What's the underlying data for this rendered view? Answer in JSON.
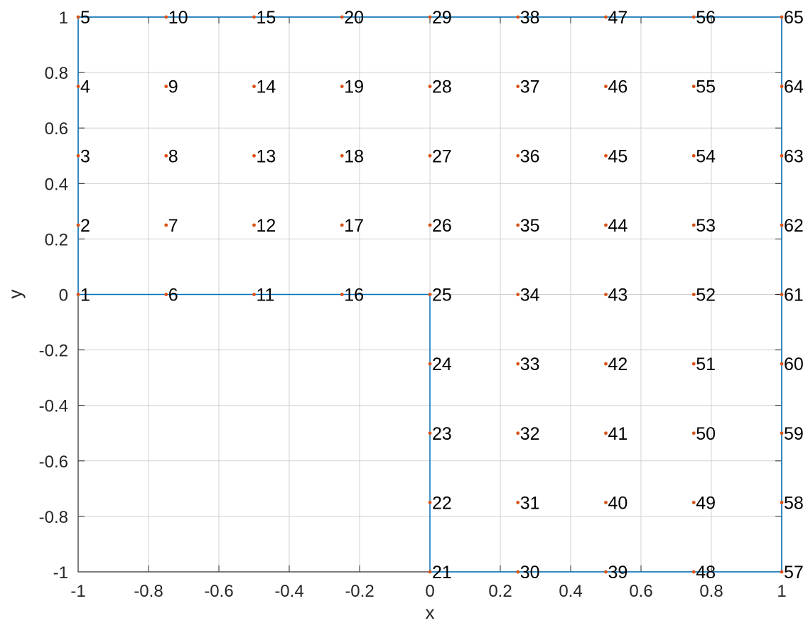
{
  "chart_data": {
    "type": "scatter",
    "title": "",
    "xlabel": "x",
    "ylabel": "y",
    "xlim": [
      -1,
      1
    ],
    "ylim": [
      -1,
      1
    ],
    "grid": true,
    "xticks": [
      "-1",
      "-0.8",
      "-0.6",
      "-0.4",
      "-0.2",
      "0",
      "0.2",
      "0.4",
      "0.6",
      "0.8",
      "1"
    ],
    "yticks": [
      "-1",
      "-0.8",
      "-0.6",
      "-0.4",
      "-0.2",
      "0",
      "0.2",
      "0.4",
      "0.6",
      "0.8",
      "1"
    ],
    "boundary": {
      "color": "#0072BD",
      "x": [
        -1,
        0,
        0,
        1,
        1,
        -1,
        -1
      ],
      "y": [
        0,
        0,
        -1,
        -1,
        1,
        1,
        0
      ]
    },
    "nodes": {
      "color": "#D95319",
      "points": [
        {
          "label": "1",
          "x": -1,
          "y": 0
        },
        {
          "label": "2",
          "x": -1,
          "y": 0.25
        },
        {
          "label": "3",
          "x": -1,
          "y": 0.5
        },
        {
          "label": "4",
          "x": -1,
          "y": 0.75
        },
        {
          "label": "5",
          "x": -1,
          "y": 1
        },
        {
          "label": "6",
          "x": -0.75,
          "y": 0
        },
        {
          "label": "7",
          "x": -0.75,
          "y": 0.25
        },
        {
          "label": "8",
          "x": -0.75,
          "y": 0.5
        },
        {
          "label": "9",
          "x": -0.75,
          "y": 0.75
        },
        {
          "label": "10",
          "x": -0.75,
          "y": 1
        },
        {
          "label": "11",
          "x": -0.5,
          "y": 0
        },
        {
          "label": "12",
          "x": -0.5,
          "y": 0.25
        },
        {
          "label": "13",
          "x": -0.5,
          "y": 0.5
        },
        {
          "label": "14",
          "x": -0.5,
          "y": 0.75
        },
        {
          "label": "15",
          "x": -0.5,
          "y": 1
        },
        {
          "label": "16",
          "x": -0.25,
          "y": 0
        },
        {
          "label": "17",
          "x": -0.25,
          "y": 0.25
        },
        {
          "label": "18",
          "x": -0.25,
          "y": 0.5
        },
        {
          "label": "19",
          "x": -0.25,
          "y": 0.75
        },
        {
          "label": "20",
          "x": -0.25,
          "y": 1
        },
        {
          "label": "21",
          "x": 0,
          "y": -1
        },
        {
          "label": "22",
          "x": 0,
          "y": -0.75
        },
        {
          "label": "23",
          "x": 0,
          "y": -0.5
        },
        {
          "label": "24",
          "x": 0,
          "y": -0.25
        },
        {
          "label": "25",
          "x": 0,
          "y": 0
        },
        {
          "label": "26",
          "x": 0,
          "y": 0.25
        },
        {
          "label": "27",
          "x": 0,
          "y": 0.5
        },
        {
          "label": "28",
          "x": 0,
          "y": 0.75
        },
        {
          "label": "29",
          "x": 0,
          "y": 1
        },
        {
          "label": "30",
          "x": 0.25,
          "y": -1
        },
        {
          "label": "31",
          "x": 0.25,
          "y": -0.75
        },
        {
          "label": "32",
          "x": 0.25,
          "y": -0.5
        },
        {
          "label": "33",
          "x": 0.25,
          "y": -0.25
        },
        {
          "label": "34",
          "x": 0.25,
          "y": 0
        },
        {
          "label": "35",
          "x": 0.25,
          "y": 0.25
        },
        {
          "label": "36",
          "x": 0.25,
          "y": 0.5
        },
        {
          "label": "37",
          "x": 0.25,
          "y": 0.75
        },
        {
          "label": "38",
          "x": 0.25,
          "y": 1
        },
        {
          "label": "39",
          "x": 0.5,
          "y": -1
        },
        {
          "label": "40",
          "x": 0.5,
          "y": -0.75
        },
        {
          "label": "41",
          "x": 0.5,
          "y": -0.5
        },
        {
          "label": "42",
          "x": 0.5,
          "y": -0.25
        },
        {
          "label": "43",
          "x": 0.5,
          "y": 0
        },
        {
          "label": "44",
          "x": 0.5,
          "y": 0.25
        },
        {
          "label": "45",
          "x": 0.5,
          "y": 0.5
        },
        {
          "label": "46",
          "x": 0.5,
          "y": 0.75
        },
        {
          "label": "47",
          "x": 0.5,
          "y": 1
        },
        {
          "label": "48",
          "x": 0.75,
          "y": -1
        },
        {
          "label": "49",
          "x": 0.75,
          "y": -0.75
        },
        {
          "label": "50",
          "x": 0.75,
          "y": -0.5
        },
        {
          "label": "51",
          "x": 0.75,
          "y": -0.25
        },
        {
          "label": "52",
          "x": 0.75,
          "y": 0
        },
        {
          "label": "53",
          "x": 0.75,
          "y": 0.25
        },
        {
          "label": "54",
          "x": 0.75,
          "y": 0.5
        },
        {
          "label": "55",
          "x": 0.75,
          "y": 0.75
        },
        {
          "label": "56",
          "x": 0.75,
          "y": 1
        },
        {
          "label": "57",
          "x": 1,
          "y": -1
        },
        {
          "label": "58",
          "x": 1,
          "y": -0.75
        },
        {
          "label": "59",
          "x": 1,
          "y": -0.5
        },
        {
          "label": "60",
          "x": 1,
          "y": -0.25
        },
        {
          "label": "61",
          "x": 1,
          "y": 0
        },
        {
          "label": "62",
          "x": 1,
          "y": 0.25
        },
        {
          "label": "63",
          "x": 1,
          "y": 0.5
        },
        {
          "label": "64",
          "x": 1,
          "y": 0.75
        },
        {
          "label": "65",
          "x": 1,
          "y": 1
        }
      ]
    }
  }
}
